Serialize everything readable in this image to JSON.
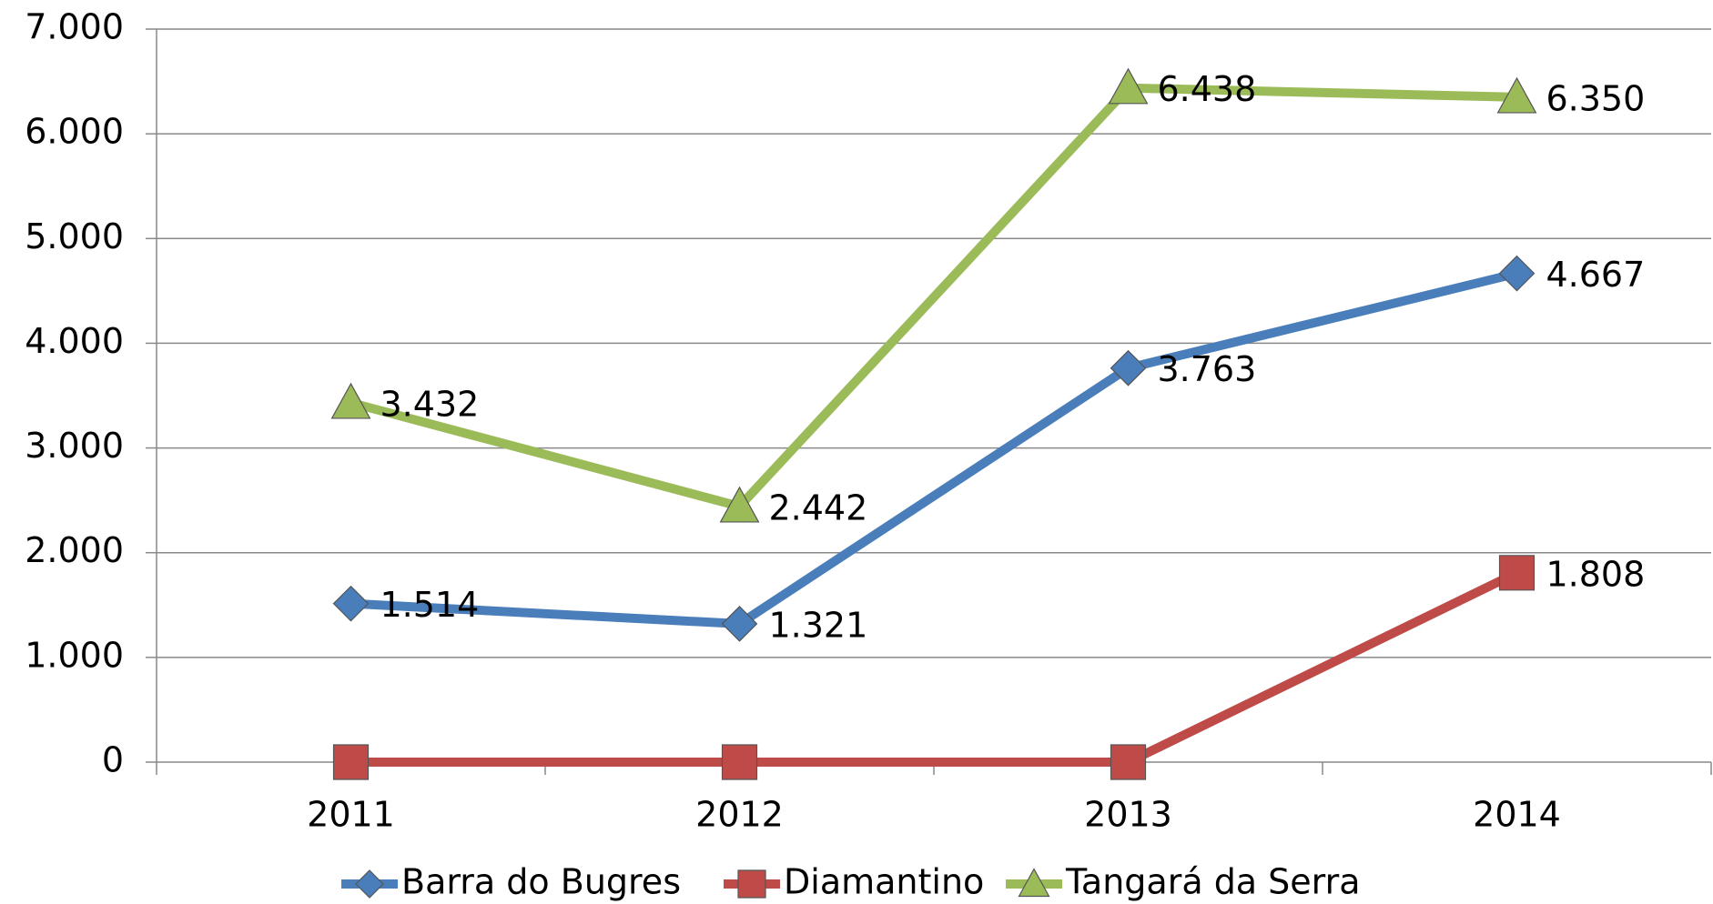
{
  "chart_data": {
    "type": "line",
    "categories": [
      "2011",
      "2012",
      "2013",
      "2014"
    ],
    "series": [
      {
        "name": "Barra do Bugres",
        "color": "#4a7ebb",
        "marker": "diamond",
        "values": [
          1514,
          1321,
          3763,
          4667
        ],
        "value_labels": [
          "1.514",
          "1.321",
          "3.763",
          "4.667"
        ]
      },
      {
        "name": "Diamantino",
        "color": "#be4b48",
        "marker": "square",
        "values": [
          0,
          0,
          0,
          1808
        ],
        "value_labels": [
          null,
          null,
          null,
          "1.808"
        ]
      },
      {
        "name": "Tangará da Serra",
        "color": "#9bbb59",
        "marker": "triangle",
        "values": [
          3432,
          2442,
          6438,
          6350
        ],
        "value_labels": [
          "3.432",
          "2.442",
          "6.438",
          "6.350"
        ]
      }
    ],
    "ylim": [
      0,
      7000
    ],
    "yticks": [
      0,
      {
        "value": 1000,
        "label": "1.000"
      },
      {
        "value": 2000,
        "label": "2.000"
      },
      {
        "value": 3000,
        "label": "3.000"
      },
      {
        "value": 4000,
        "label": "4.000"
      },
      {
        "value": 5000,
        "label": "5.000"
      },
      {
        "value": 6000,
        "label": "6.000"
      },
      {
        "value": 7000,
        "label": "7.000"
      }
    ],
    "grid": true,
    "legend": "bottom"
  }
}
